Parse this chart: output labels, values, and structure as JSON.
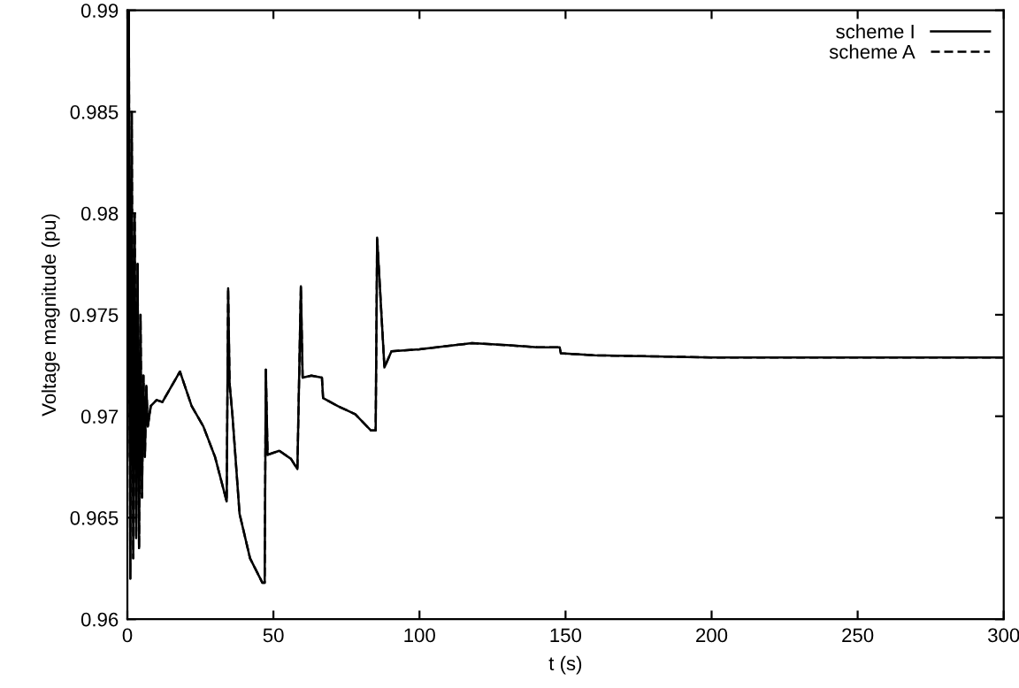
{
  "chart_data": {
    "type": "line",
    "xlabel": "t (s)",
    "ylabel": "Voltage magnitude (pu)",
    "xlim": [
      0,
      300
    ],
    "xticks": [
      0,
      50,
      100,
      150,
      200,
      250,
      300
    ],
    "ylim": [
      0.96,
      0.99
    ],
    "yticks": [
      0.96,
      0.965,
      0.97,
      0.975,
      0.98,
      0.985,
      0.99
    ],
    "grid": false,
    "legend": "top right",
    "marker": "none",
    "series": [
      {
        "name": "scheme I",
        "color": "#000000",
        "line_style": "solid",
        "x": [
          0,
          0.5,
          1,
          1.5,
          2,
          2.5,
          3,
          3.5,
          4,
          4.5,
          5,
          5.5,
          6,
          6.5,
          7,
          8,
          10,
          12,
          18,
          22,
          26,
          30,
          34,
          34.5,
          35,
          36,
          38.4,
          42,
          46.2,
          47,
          47.4,
          48,
          52,
          56,
          58.2,
          59.4,
          60,
          63,
          66.6,
          67,
          72,
          78,
          83.4,
          85,
          85.5,
          88,
          90.4,
          100,
          118,
          130,
          140.4,
          148,
          148.4,
          160,
          200,
          250,
          300
        ],
        "values": [
          0.968,
          0.99,
          0.962,
          0.985,
          0.963,
          0.98,
          0.964,
          0.9775,
          0.9635,
          0.975,
          0.966,
          0.972,
          0.968,
          0.9715,
          0.9695,
          0.9705,
          0.9708,
          0.9707,
          0.9722,
          0.9705,
          0.9695,
          0.968,
          0.9658,
          0.9763,
          0.9716,
          0.97,
          0.9652,
          0.963,
          0.9618,
          0.9618,
          0.9723,
          0.9681,
          0.9683,
          0.9679,
          0.9674,
          0.9764,
          0.9719,
          0.972,
          0.9719,
          0.9709,
          0.9705,
          0.9701,
          0.9693,
          0.9693,
          0.9788,
          0.9724,
          0.9732,
          0.9733,
          0.9736,
          0.9735,
          0.9734,
          0.9734,
          0.9731,
          0.973,
          0.9729,
          0.9729,
          0.9729
        ]
      },
      {
        "name": "scheme A",
        "color": "#000000",
        "line_style": "dashed",
        "x": [
          0,
          0.5,
          1,
          1.5,
          2,
          2.5,
          3,
          3.5,
          4,
          4.5,
          5,
          5.5,
          6,
          6.5,
          7,
          8,
          10,
          12,
          18,
          22,
          26,
          30,
          34,
          34.5,
          35,
          36,
          38.4,
          42,
          46.2,
          47,
          47.4,
          48,
          52,
          56,
          58.2,
          59.4,
          60,
          63,
          66.6,
          67,
          72,
          78,
          83.4,
          85,
          85.5,
          88,
          90.4,
          100,
          118,
          130,
          140.4,
          148,
          148.4,
          160,
          200,
          250,
          300
        ],
        "values": [
          0.968,
          0.99,
          0.962,
          0.985,
          0.963,
          0.98,
          0.964,
          0.9775,
          0.9635,
          0.975,
          0.966,
          0.972,
          0.968,
          0.9715,
          0.9695,
          0.9705,
          0.9708,
          0.9707,
          0.9722,
          0.9705,
          0.9695,
          0.968,
          0.9658,
          0.9763,
          0.9716,
          0.97,
          0.9652,
          0.963,
          0.9618,
          0.9618,
          0.9723,
          0.9681,
          0.9683,
          0.9679,
          0.9674,
          0.9764,
          0.9719,
          0.972,
          0.9719,
          0.9709,
          0.9705,
          0.9701,
          0.9693,
          0.9693,
          0.9788,
          0.9724,
          0.9732,
          0.9733,
          0.9736,
          0.9735,
          0.9734,
          0.9734,
          0.9731,
          0.973,
          0.9729,
          0.9729,
          0.9729
        ]
      }
    ]
  }
}
